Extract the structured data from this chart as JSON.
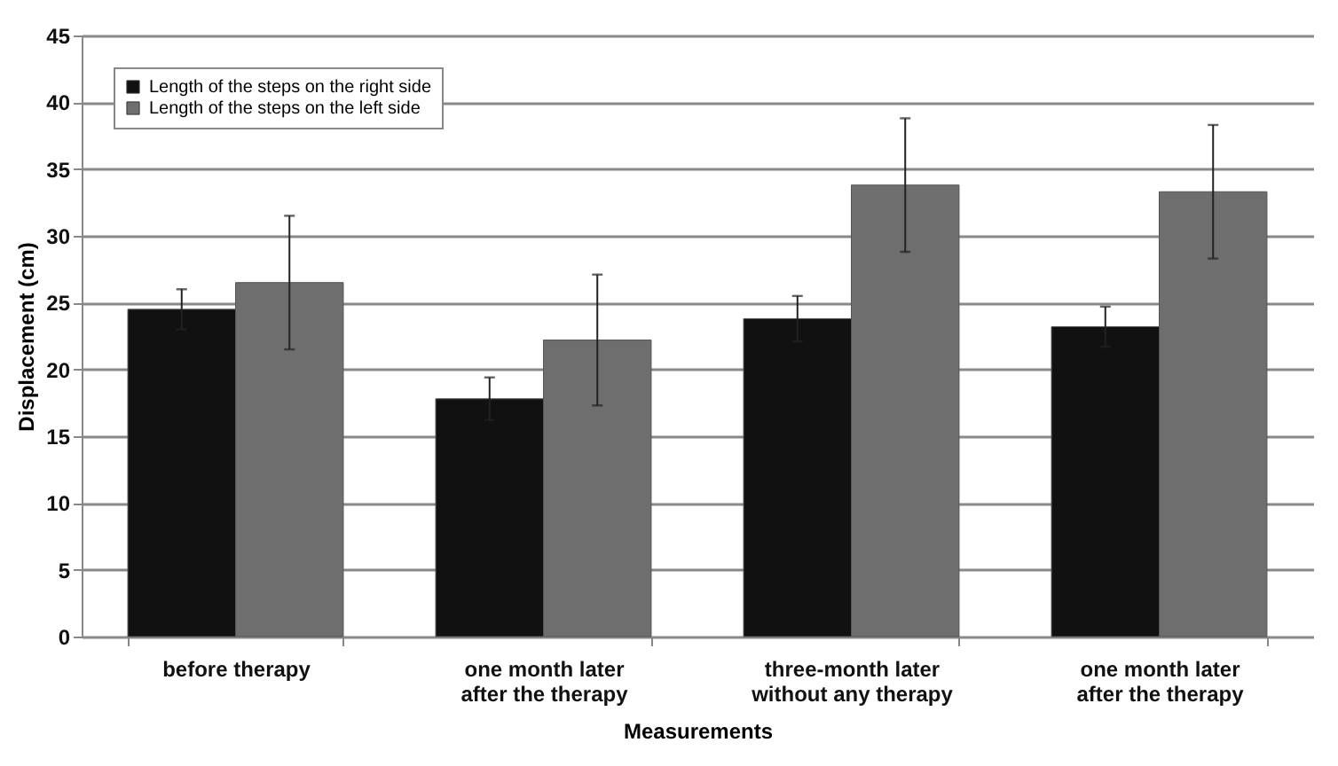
{
  "chart_data": {
    "type": "bar",
    "xlabel": "Measurements",
    "ylabel": "Displacement (cm)",
    "categories": [
      "before therapy",
      "one month later after the therapy",
      "three-month later without any therapy",
      "one month later after the therapy"
    ],
    "series": [
      {
        "name": "Length of the steps on the right side",
        "color": "#111111",
        "values": [
          24.5,
          17.8,
          23.8,
          23.2
        ],
        "errors": [
          1.5,
          1.6,
          1.7,
          1.5
        ]
      },
      {
        "name": "Length of the steps on the left side",
        "color": "#6e6e6e",
        "values": [
          26.5,
          22.2,
          33.8,
          33.3
        ],
        "errors": [
          5,
          4.9,
          5,
          5
        ]
      }
    ],
    "ylim": [
      0,
      45
    ],
    "yticks": [
      0,
      5,
      10,
      15,
      20,
      25,
      30,
      35,
      40,
      45
    ],
    "grid": "y",
    "legend": "top left"
  }
}
